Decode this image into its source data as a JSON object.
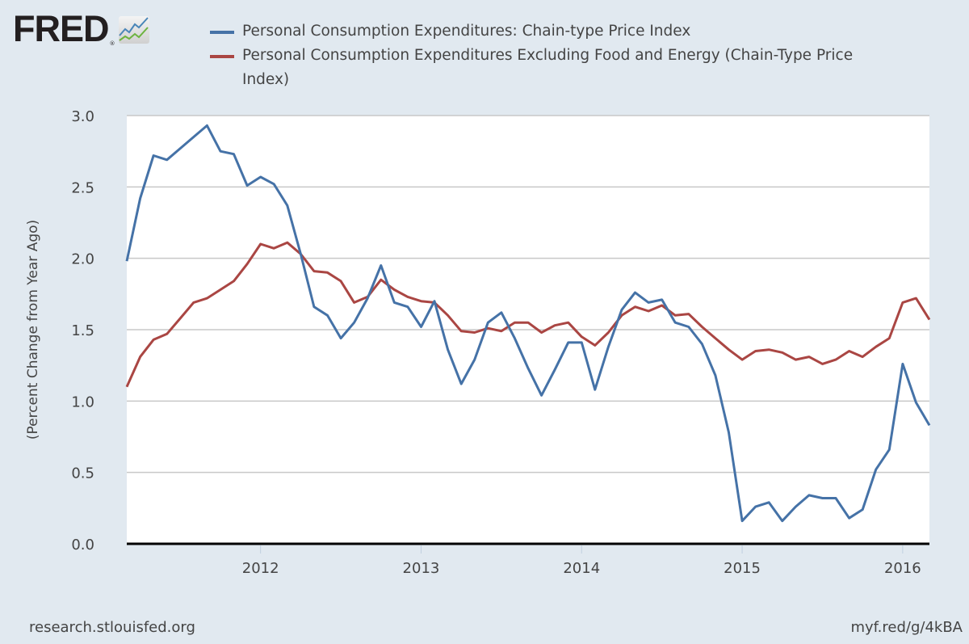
{
  "header": {
    "logo_text": "FRED",
    "logo_registered": "®"
  },
  "legend": [
    {
      "label": "Personal Consumption Expenditures: Chain-type Price Index",
      "color": "#4572a7"
    },
    {
      "label": "Personal Consumption Expenditures Excluding Food and Energy (Chain-Type Price Index)",
      "color": "#aa4643"
    }
  ],
  "footer": {
    "source": "research.stlouisfed.org",
    "short_url": "myf.red/g/4kBA"
  },
  "chart_data": {
    "type": "line",
    "title": "",
    "xlabel": "",
    "ylabel": "(Percent Change from Year Ago)",
    "ylim": [
      0,
      3.0
    ],
    "yticks": [
      "0.0",
      "0.5",
      "1.0",
      "1.5",
      "2.0",
      "2.5",
      "3.0"
    ],
    "xticks": [
      "2012",
      "2013",
      "2014",
      "2015",
      "2016"
    ],
    "x_start": "2011-03",
    "x_end": "2016-03",
    "frequency": "monthly",
    "grid": true,
    "legend_position": "top",
    "series": [
      {
        "name": "Personal Consumption Expenditures: Chain-type Price Index",
        "color": "#4572a7",
        "values": [
          1.98,
          2.42,
          2.72,
          2.69,
          2.77,
          2.85,
          2.93,
          2.75,
          2.73,
          2.51,
          2.57,
          2.52,
          2.37,
          2.03,
          1.66,
          1.6,
          1.44,
          1.55,
          1.72,
          1.95,
          1.69,
          1.66,
          1.52,
          1.7,
          1.36,
          1.12,
          1.29,
          1.55,
          1.62,
          1.44,
          1.23,
          1.04,
          1.22,
          1.41,
          1.41,
          1.08,
          1.38,
          1.64,
          1.76,
          1.69,
          1.71,
          1.55,
          1.52,
          1.4,
          1.18,
          0.78,
          0.16,
          0.26,
          0.29,
          0.16,
          0.26,
          0.34,
          0.32,
          0.32,
          0.18,
          0.24,
          0.52,
          0.66,
          1.26,
          0.99,
          0.83
        ]
      },
      {
        "name": "Personal Consumption Expenditures Excluding Food and Energy (Chain-Type Price Index)",
        "color": "#aa4643",
        "values": [
          1.1,
          1.31,
          1.43,
          1.47,
          1.58,
          1.69,
          1.72,
          1.78,
          1.84,
          1.96,
          2.1,
          2.07,
          2.11,
          2.03,
          1.91,
          1.9,
          1.84,
          1.69,
          1.73,
          1.85,
          1.78,
          1.73,
          1.7,
          1.69,
          1.6,
          1.49,
          1.48,
          1.51,
          1.49,
          1.55,
          1.55,
          1.48,
          1.53,
          1.55,
          1.45,
          1.39,
          1.48,
          1.6,
          1.66,
          1.63,
          1.67,
          1.6,
          1.61,
          1.52,
          1.44,
          1.36,
          1.29,
          1.35,
          1.36,
          1.34,
          1.29,
          1.31,
          1.26,
          1.29,
          1.35,
          1.31,
          1.38,
          1.44,
          1.69,
          1.72,
          1.57
        ]
      }
    ]
  }
}
